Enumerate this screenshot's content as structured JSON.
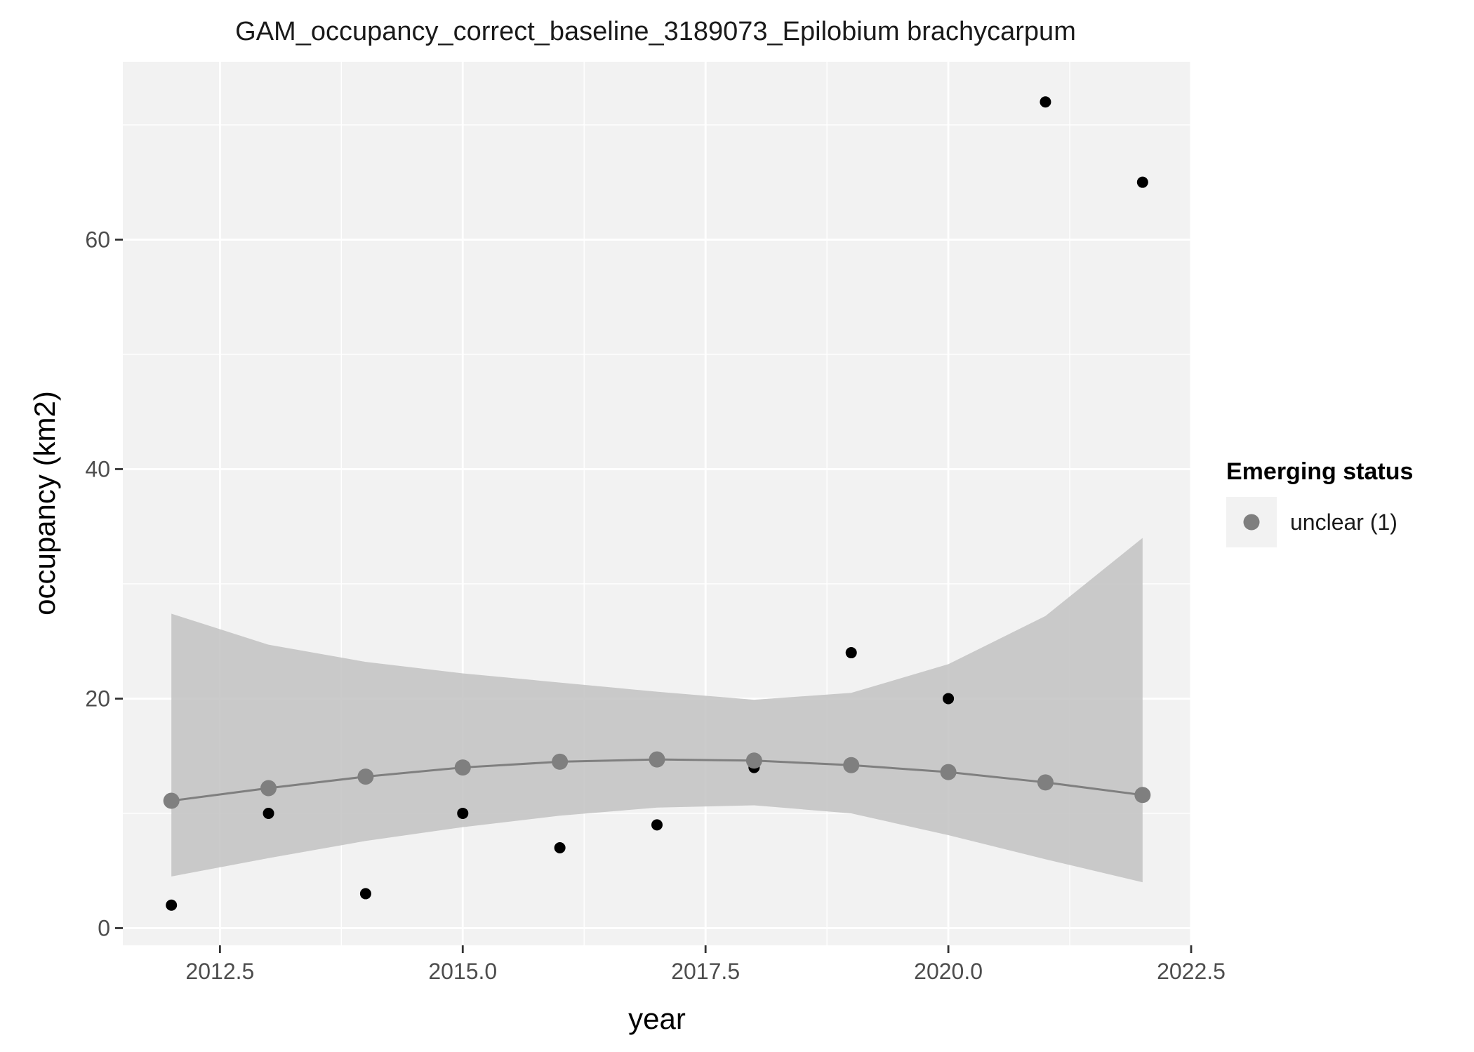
{
  "chart_data": {
    "type": "scatter",
    "title": "GAM_occupancy_correct_baseline_3189073_Epilobium brachycarpum",
    "xlabel": "year",
    "ylabel": "occupancy (km2)",
    "xlim": [
      2011.5,
      2022.5
    ],
    "ylim": [
      -1.5,
      75.5
    ],
    "x_ticks": [
      2012.5,
      2015.0,
      2017.5,
      2020.0,
      2022.5
    ],
    "x_tick_labels": [
      "2012.5",
      "2015.0",
      "2017.5",
      "2020.0",
      "2022.5"
    ],
    "y_ticks": [
      0,
      20,
      40,
      60
    ],
    "y_tick_labels": [
      "0",
      "20",
      "40",
      "60"
    ],
    "grid": true,
    "observed": {
      "x": [
        2012,
        2013,
        2014,
        2015,
        2016,
        2017,
        2018,
        2019,
        2020,
        2021,
        2022
      ],
      "y": [
        2,
        10,
        3,
        10,
        7,
        9,
        14,
        24,
        20,
        72,
        65
      ]
    },
    "fit": {
      "x": [
        2012,
        2013,
        2014,
        2015,
        2016,
        2017,
        2018,
        2019,
        2020,
        2021,
        2022
      ],
      "y": [
        11.1,
        12.2,
        13.2,
        14.0,
        14.5,
        14.7,
        14.6,
        14.2,
        13.6,
        12.7,
        11.6
      ],
      "lower": [
        4.5,
        6.1,
        7.6,
        8.8,
        9.8,
        10.5,
        10.7,
        10.0,
        8.1,
        6.0,
        4.0
      ],
      "upper": [
        27.4,
        24.7,
        23.2,
        22.2,
        21.4,
        20.6,
        19.9,
        20.5,
        23.0,
        27.2,
        34.0
      ]
    },
    "colors": {
      "panel": "#f2f2f2",
      "grid": "#ffffff",
      "observed": "#000000",
      "fit": "#7f7f7f",
      "ribbon": "#bebebe"
    },
    "legend": {
      "title": "Emerging status",
      "position": "right",
      "entries": [
        {
          "label": "unclear (1)",
          "color": "#7f7f7f"
        }
      ]
    }
  }
}
